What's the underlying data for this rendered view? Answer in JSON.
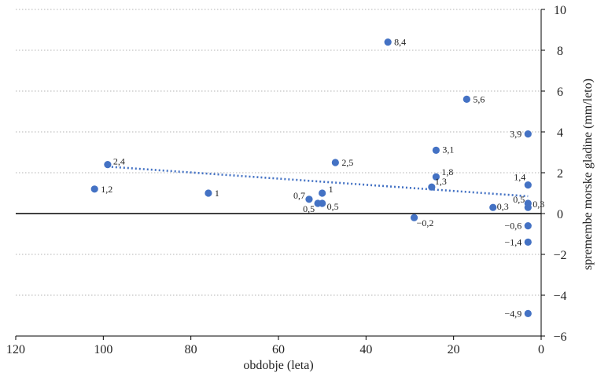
{
  "chart_data": {
    "type": "scatter",
    "title": "",
    "xlabel": "obdobje (leta)",
    "ylabel": "spremembe morske gladine (mm/leto)",
    "xlim": [
      120,
      0
    ],
    "ylim": [
      -6,
      10
    ],
    "x_ticks": [
      120,
      100,
      80,
      60,
      40,
      20,
      0
    ],
    "y_ticks": [
      10,
      8,
      6,
      4,
      2,
      0,
      -2,
      -4,
      -6
    ],
    "x_tick_labels": [
      "120",
      "100",
      "80",
      "60",
      "40",
      "20",
      "0"
    ],
    "y_tick_labels": [
      "10",
      "8",
      "6",
      "4",
      "2",
      "0",
      "−2",
      "−4",
      "−6"
    ],
    "grid": "horizontal dotted",
    "y_axis_side": "right",
    "zero_line": true,
    "marker_color": "#4472C4",
    "trendline_color": "#4472C4",
    "trendline": {
      "x": [
        99,
        3
      ],
      "y": [
        2.3,
        0.85
      ],
      "style": "dotted"
    },
    "points": [
      {
        "x": 102,
        "y": 1.2,
        "label": "1,2"
      },
      {
        "x": 99,
        "y": 2.4,
        "label": "2,4"
      },
      {
        "x": 76,
        "y": 1.0,
        "label": "1"
      },
      {
        "x": 53,
        "y": 0.7,
        "label": "0,7"
      },
      {
        "x": 50,
        "y": 1.0,
        "label": "1"
      },
      {
        "x": 51,
        "y": 0.5,
        "label": "0,5"
      },
      {
        "x": 50,
        "y": 0.5,
        "label": "0,5"
      },
      {
        "x": 47,
        "y": 2.5,
        "label": "2,5"
      },
      {
        "x": 35,
        "y": 8.4,
        "label": "8,4"
      },
      {
        "x": 29,
        "y": -0.2,
        "label": "−0,2"
      },
      {
        "x": 25,
        "y": 1.3,
        "label": "1,3"
      },
      {
        "x": 24,
        "y": 3.1,
        "label": "3,1"
      },
      {
        "x": 24,
        "y": 1.8,
        "label": "1,8"
      },
      {
        "x": 17,
        "y": 5.6,
        "label": "5,6"
      },
      {
        "x": 11,
        "y": 0.3,
        "label": "0,3"
      },
      {
        "x": 3,
        "y": 3.9,
        "label": "3,9"
      },
      {
        "x": 3,
        "y": 1.4,
        "label": "1,4"
      },
      {
        "x": 3,
        "y": 0.5,
        "label": "0,5"
      },
      {
        "x": 3,
        "y": 0.3,
        "label": "0,3"
      },
      {
        "x": 3,
        "y": -0.6,
        "label": "−0,6"
      },
      {
        "x": 3,
        "y": -1.4,
        "label": "−1,4"
      },
      {
        "x": 3,
        "y": -4.9,
        "label": "−4,9"
      }
    ]
  }
}
